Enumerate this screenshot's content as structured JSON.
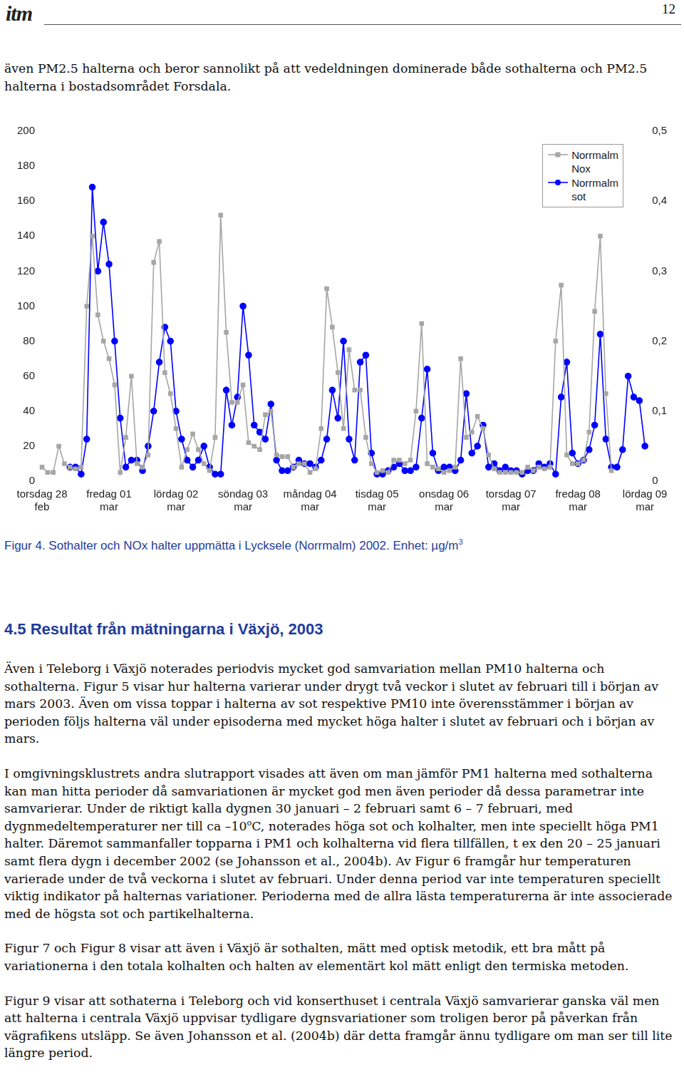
{
  "header": {
    "logo": "itm",
    "page": "12"
  },
  "top_paragraph": [
    "även PM2.5 halterna och beror sannolikt på att vedeldningen dominerade både sothalterna och PM2.5 halterna i bostadsområdet Forsdala."
  ],
  "chart_data": {
    "type": "line",
    "categories": [
      "torsdag 28\nfeb",
      null,
      null,
      null,
      null,
      null,
      null,
      null,
      null,
      null,
      null,
      null,
      "fredag 01\nmar",
      null,
      null,
      null,
      null,
      null,
      null,
      null,
      null,
      null,
      null,
      null,
      "lördag 02\nmar",
      null,
      null,
      null,
      null,
      null,
      null,
      null,
      null,
      null,
      null,
      null,
      "söndag 03\nmar",
      null,
      null,
      null,
      null,
      null,
      null,
      null,
      null,
      null,
      null,
      null,
      "måndag 04\nmar",
      null,
      null,
      null,
      null,
      null,
      null,
      null,
      null,
      null,
      null,
      null,
      "tisdag 05\nmar",
      null,
      null,
      null,
      null,
      null,
      null,
      null,
      null,
      null,
      null,
      null,
      "onsdag 06\nmar",
      null,
      null,
      null,
      null,
      null,
      null,
      null,
      null,
      null,
      null,
      null,
      "torsdag 07\nmar",
      null,
      null,
      null,
      null,
      null,
      null,
      null,
      null,
      null,
      null,
      null,
      "fredag 08\nmar",
      null,
      null,
      null,
      null,
      null,
      null,
      null,
      null,
      null,
      null,
      null,
      "lördag 09\nmar"
    ],
    "series": [
      {
        "name": "Norrmalm Nox",
        "color": "#a6a6a6",
        "marker": "square",
        "line_style": "solid",
        "values": [
          8,
          5,
          5,
          20,
          10,
          8,
          7,
          8,
          100,
          140,
          95,
          80,
          70,
          55,
          5,
          25,
          60,
          10,
          8,
          15,
          125,
          137,
          62,
          50,
          30,
          8,
          18,
          27,
          18,
          10,
          6,
          25,
          152,
          85,
          45,
          45,
          55,
          22,
          20,
          18,
          38,
          40,
          15,
          14,
          14,
          8,
          10,
          10,
          5,
          7,
          30,
          110,
          88,
          62,
          30,
          75,
          52,
          52,
          25,
          10,
          5,
          6,
          5,
          12,
          12,
          10,
          12,
          40,
          90,
          10,
          8,
          7,
          5,
          6,
          8,
          70,
          25,
          28,
          37,
          30,
          15,
          7,
          5,
          5,
          5,
          5,
          5,
          8,
          6,
          8,
          7,
          8,
          80,
          112,
          15,
          10,
          10,
          12,
          28,
          97,
          140,
          50,
          6,
          null,
          null,
          null,
          null,
          null,
          null
        ]
      },
      {
        "name": "Norrmalm sot",
        "color": "#0000ff",
        "marker": "circle",
        "line_style": "solid",
        "axis": "y2",
        "values": [
          null,
          null,
          null,
          null,
          null,
          0.02,
          0.02,
          0.01,
          0.06,
          0.42,
          0.3,
          0.37,
          0.31,
          0.2,
          0.09,
          0.02,
          0.03,
          0.03,
          0.015,
          0.05,
          0.1,
          0.17,
          0.22,
          0.2,
          0.1,
          0.06,
          0.03,
          0.02,
          0.03,
          0.05,
          0.02,
          0.01,
          0.01,
          0.13,
          0.08,
          0.12,
          0.25,
          0.18,
          0.08,
          0.07,
          0.06,
          0.11,
          0.03,
          0.015,
          0.015,
          0.02,
          0.03,
          0.025,
          0.025,
          0.02,
          0.03,
          0.06,
          0.13,
          0.09,
          0.2,
          0.06,
          0.03,
          0.17,
          0.18,
          0.04,
          0.01,
          0.01,
          0.015,
          0.02,
          0.025,
          0.015,
          0.015,
          0.02,
          0.09,
          0.16,
          0.04,
          0.015,
          0.02,
          0.02,
          0.015,
          0.03,
          0.125,
          0.04,
          0.05,
          0.08,
          0.02,
          0.025,
          0.015,
          0.02,
          0.015,
          0.015,
          0.01,
          0.015,
          0.015,
          0.025,
          0.02,
          0.025,
          0.01,
          0.12,
          0.17,
          0.04,
          0.025,
          0.03,
          0.045,
          0.08,
          0.21,
          0.06,
          0.02,
          0.02,
          0.045,
          0.15,
          0.12,
          0.115,
          0.05
        ]
      }
    ],
    "ylim": [
      0,
      200
    ],
    "yticks": [
      0,
      20,
      40,
      60,
      80,
      100,
      120,
      140,
      160,
      180,
      200
    ],
    "y2lim": [
      0,
      0.5
    ],
    "y2ticks": [
      0,
      {
        "value": 0.1,
        "label": "0,1"
      },
      {
        "value": 0.2,
        "label": "0,2"
      },
      {
        "value": 0.3,
        "label": "0,3"
      },
      {
        "value": 0.4,
        "label": "0,4"
      },
      {
        "value": 0.5,
        "label": "0,5"
      }
    ],
    "grid": false,
    "legend": "top-right"
  },
  "caption": [
    "Figur 4. Sothalter och NOx halter uppmätta i Lycksele (Norrmalm) 2002. Enhet: µg/m",
    {
      "sup": "3"
    }
  ],
  "heading": "4.5 Resultat från mätningarna i Växjö, 2003",
  "paragraphs": [
    [
      "Även i Teleborg i Växjö noterades periodvis mycket god samvariation mellan PM10 halterna och sothalterna. Figur 5 visar hur halterna varierar under drygt två veckor i slutet av februari till i början av mars 2003. Även om vissa toppar i halterna av sot respektive PM10 inte överensstämmer i början av perioden följs halterna väl under episoderna med mycket höga halter i slutet av februari och i början av mars."
    ],
    [
      "I omgivningsklustrets andra slutrapport visades att även om man jämför PM1 halterna med sothalterna kan man hitta perioder då samvariationen är mycket god men även perioder då dessa parametrar inte samvarierar. Under de riktigt kalla dygnen 30 januari – 2 februari samt 6 – 7 februari, med dygnmedeltemperaturer ner till ca –10",
      {
        "sup": "o"
      },
      "C, noterades höga sot och kolhalter, men inte speciellt höga PM1 halter. Däremot sammanfaller topparna i PM1 och kolhalterna vid flera tillfällen, t ex den 20 – 25 januari samt flera dygn i december 2002 (se Johansson et al., 2004b). Av Figur 6 framgår hur temperaturen varierade under de två veckorna i slutet av februari. Under denna period var inte temperaturen speciellt viktig indikator på halternas variationer. Perioderna med de allra lästa temperaturerna är inte associerade med de högsta sot och partikelhalterna."
    ],
    [
      "Figur 7 och Figur 8 visar att även i Växjö är sothalten, mätt med optisk metodik, ett bra mått på variationerna i den totala kolhalten och halten av elementärt kol mätt enligt den termiska metoden."
    ],
    [
      "Figur 9 visar att sothaterna i Teleborg och vid konserthuset i centrala Växjö samvarierar ganska väl men att halterna i centrala Växjö uppvisar tydligare dygnsvariationer som troligen beror på påverkan från vägrafikens utsläpp. Se även Johansson et al. (2004b) där detta framgår ännu tydligare om man ser till lite längre period."
    ]
  ]
}
